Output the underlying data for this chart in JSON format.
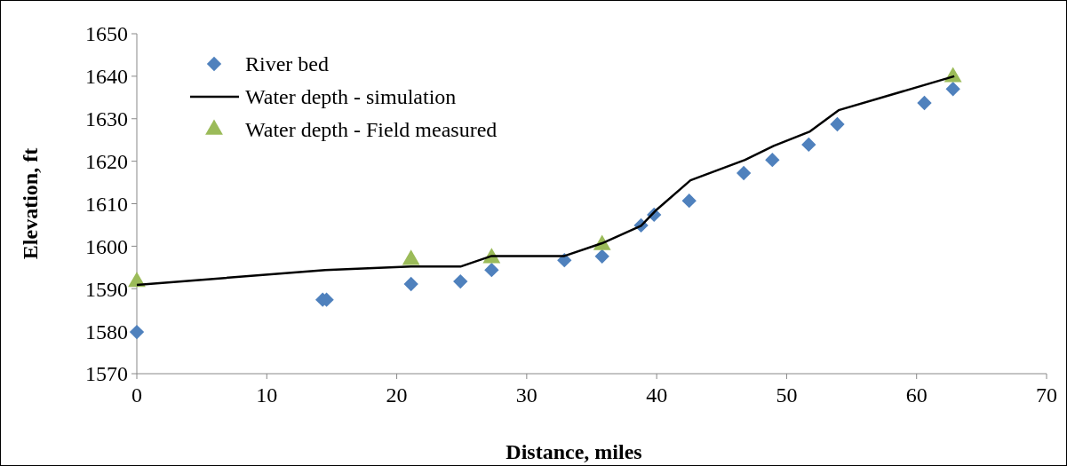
{
  "chart_data": {
    "type": "scatter",
    "xlabel": "Distance, miles",
    "ylabel": "Elevation, ft",
    "xlim": [
      0,
      70
    ],
    "ylim": [
      1570,
      1650
    ],
    "xticks": [
      0,
      10,
      20,
      30,
      40,
      50,
      60,
      70
    ],
    "yticks": [
      1570,
      1580,
      1590,
      1600,
      1610,
      1620,
      1630,
      1640,
      1650
    ],
    "legend": "top left",
    "grid": false,
    "series": [
      {
        "name": "River bed",
        "marker": "diamond",
        "color": "#4f81bd",
        "x": [
          0,
          14.3,
          14.6,
          21.1,
          24.9,
          27.3,
          32.9,
          35.8,
          38.8,
          39.8,
          42.5,
          46.7,
          48.9,
          51.7,
          53.9,
          60.6,
          62.8
        ],
        "values": [
          1579.8,
          1587.4,
          1587.4,
          1591.1,
          1591.7,
          1594.4,
          1596.7,
          1597.6,
          1604.9,
          1607.4,
          1610.7,
          1617.2,
          1620.3,
          1623.9,
          1628.7,
          1633.7,
          1637.0
        ]
      },
      {
        "name": "Water depth - simulation",
        "type": "line",
        "marker": "none",
        "color": "#000000",
        "x": [
          0,
          14.5,
          21.1,
          24.9,
          27.3,
          32.9,
          35.8,
          38.8,
          40,
          42.6,
          46.8,
          49,
          51.8,
          54,
          62.9
        ],
        "values": [
          1590.9,
          1594.4,
          1595.2,
          1595.2,
          1597.7,
          1597.7,
          1600.7,
          1604.8,
          1608.6,
          1615.5,
          1620.3,
          1623.6,
          1627,
          1632,
          1640
        ]
      },
      {
        "name": "Water depth - Field measured",
        "marker": "triangle",
        "color": "#9bbb59",
        "x": [
          0,
          21.1,
          27.3,
          35.8,
          62.8
        ],
        "values": [
          1591.6,
          1596.8,
          1597.2,
          1600.3,
          1639.8
        ]
      }
    ]
  }
}
